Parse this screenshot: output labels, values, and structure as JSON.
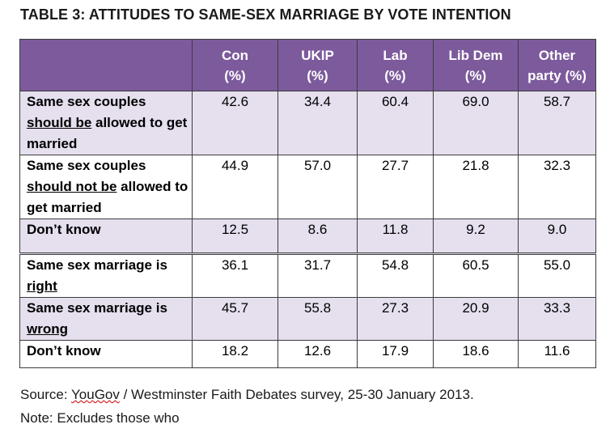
{
  "title": "TABLE 3: ATTITUDES TO SAME-SEX MARRIAGE BY VOTE INTENTION",
  "header": {
    "label_col": "",
    "columns": [
      {
        "line1": "Con",
        "line2": "(%)"
      },
      {
        "line1": "UKIP",
        "line2": "(%)"
      },
      {
        "line1": "Lab",
        "line2": "(%)"
      },
      {
        "line1": "Lib Dem",
        "line2": "(%)"
      },
      {
        "line1": "Other",
        "line2": "party (%)"
      }
    ]
  },
  "rows": [
    {
      "label_pre": "Same sex couples ",
      "label_u": "should be",
      "label_post": " allowed to get married",
      "values": [
        "42.6",
        "34.4",
        "60.4",
        "69.0",
        "58.7"
      ]
    },
    {
      "label_pre": "Same sex couples ",
      "label_u": "should not be",
      "label_post": " allowed to get married",
      "values": [
        "44.9",
        "57.0",
        "27.7",
        "21.8",
        "32.3"
      ]
    },
    {
      "label_pre": "Don’t know",
      "label_u": "",
      "label_post": "",
      "values": [
        "12.5",
        "8.6",
        "11.8",
        "9.2",
        "9.0"
      ]
    },
    {
      "label_pre": "Same sex marriage is ",
      "label_u": "right",
      "label_post": "",
      "values": [
        "36.1",
        "31.7",
        "54.8",
        "60.5",
        "55.0"
      ]
    },
    {
      "label_pre": "Same sex marriage is ",
      "label_u": "wrong",
      "label_post": "",
      "values": [
        "45.7",
        "55.8",
        "27.3",
        "20.9",
        "33.3"
      ]
    },
    {
      "label_pre": "Don’t know",
      "label_u": "",
      "label_post": "",
      "values": [
        "18.2",
        "12.6",
        "17.9",
        "18.6",
        "11.6"
      ]
    }
  ],
  "footnote": {
    "source_prefix": "Source: ",
    "source_link": "YouGov",
    "source_rest": " / Westminster Faith Debates survey, 25-30 January 2013.",
    "note": "Note: Excludes those who"
  },
  "colors": {
    "header_bg": "#7d5a9c",
    "odd_row_bg": "#e5dfee",
    "even_row_bg": "#ffffff"
  }
}
